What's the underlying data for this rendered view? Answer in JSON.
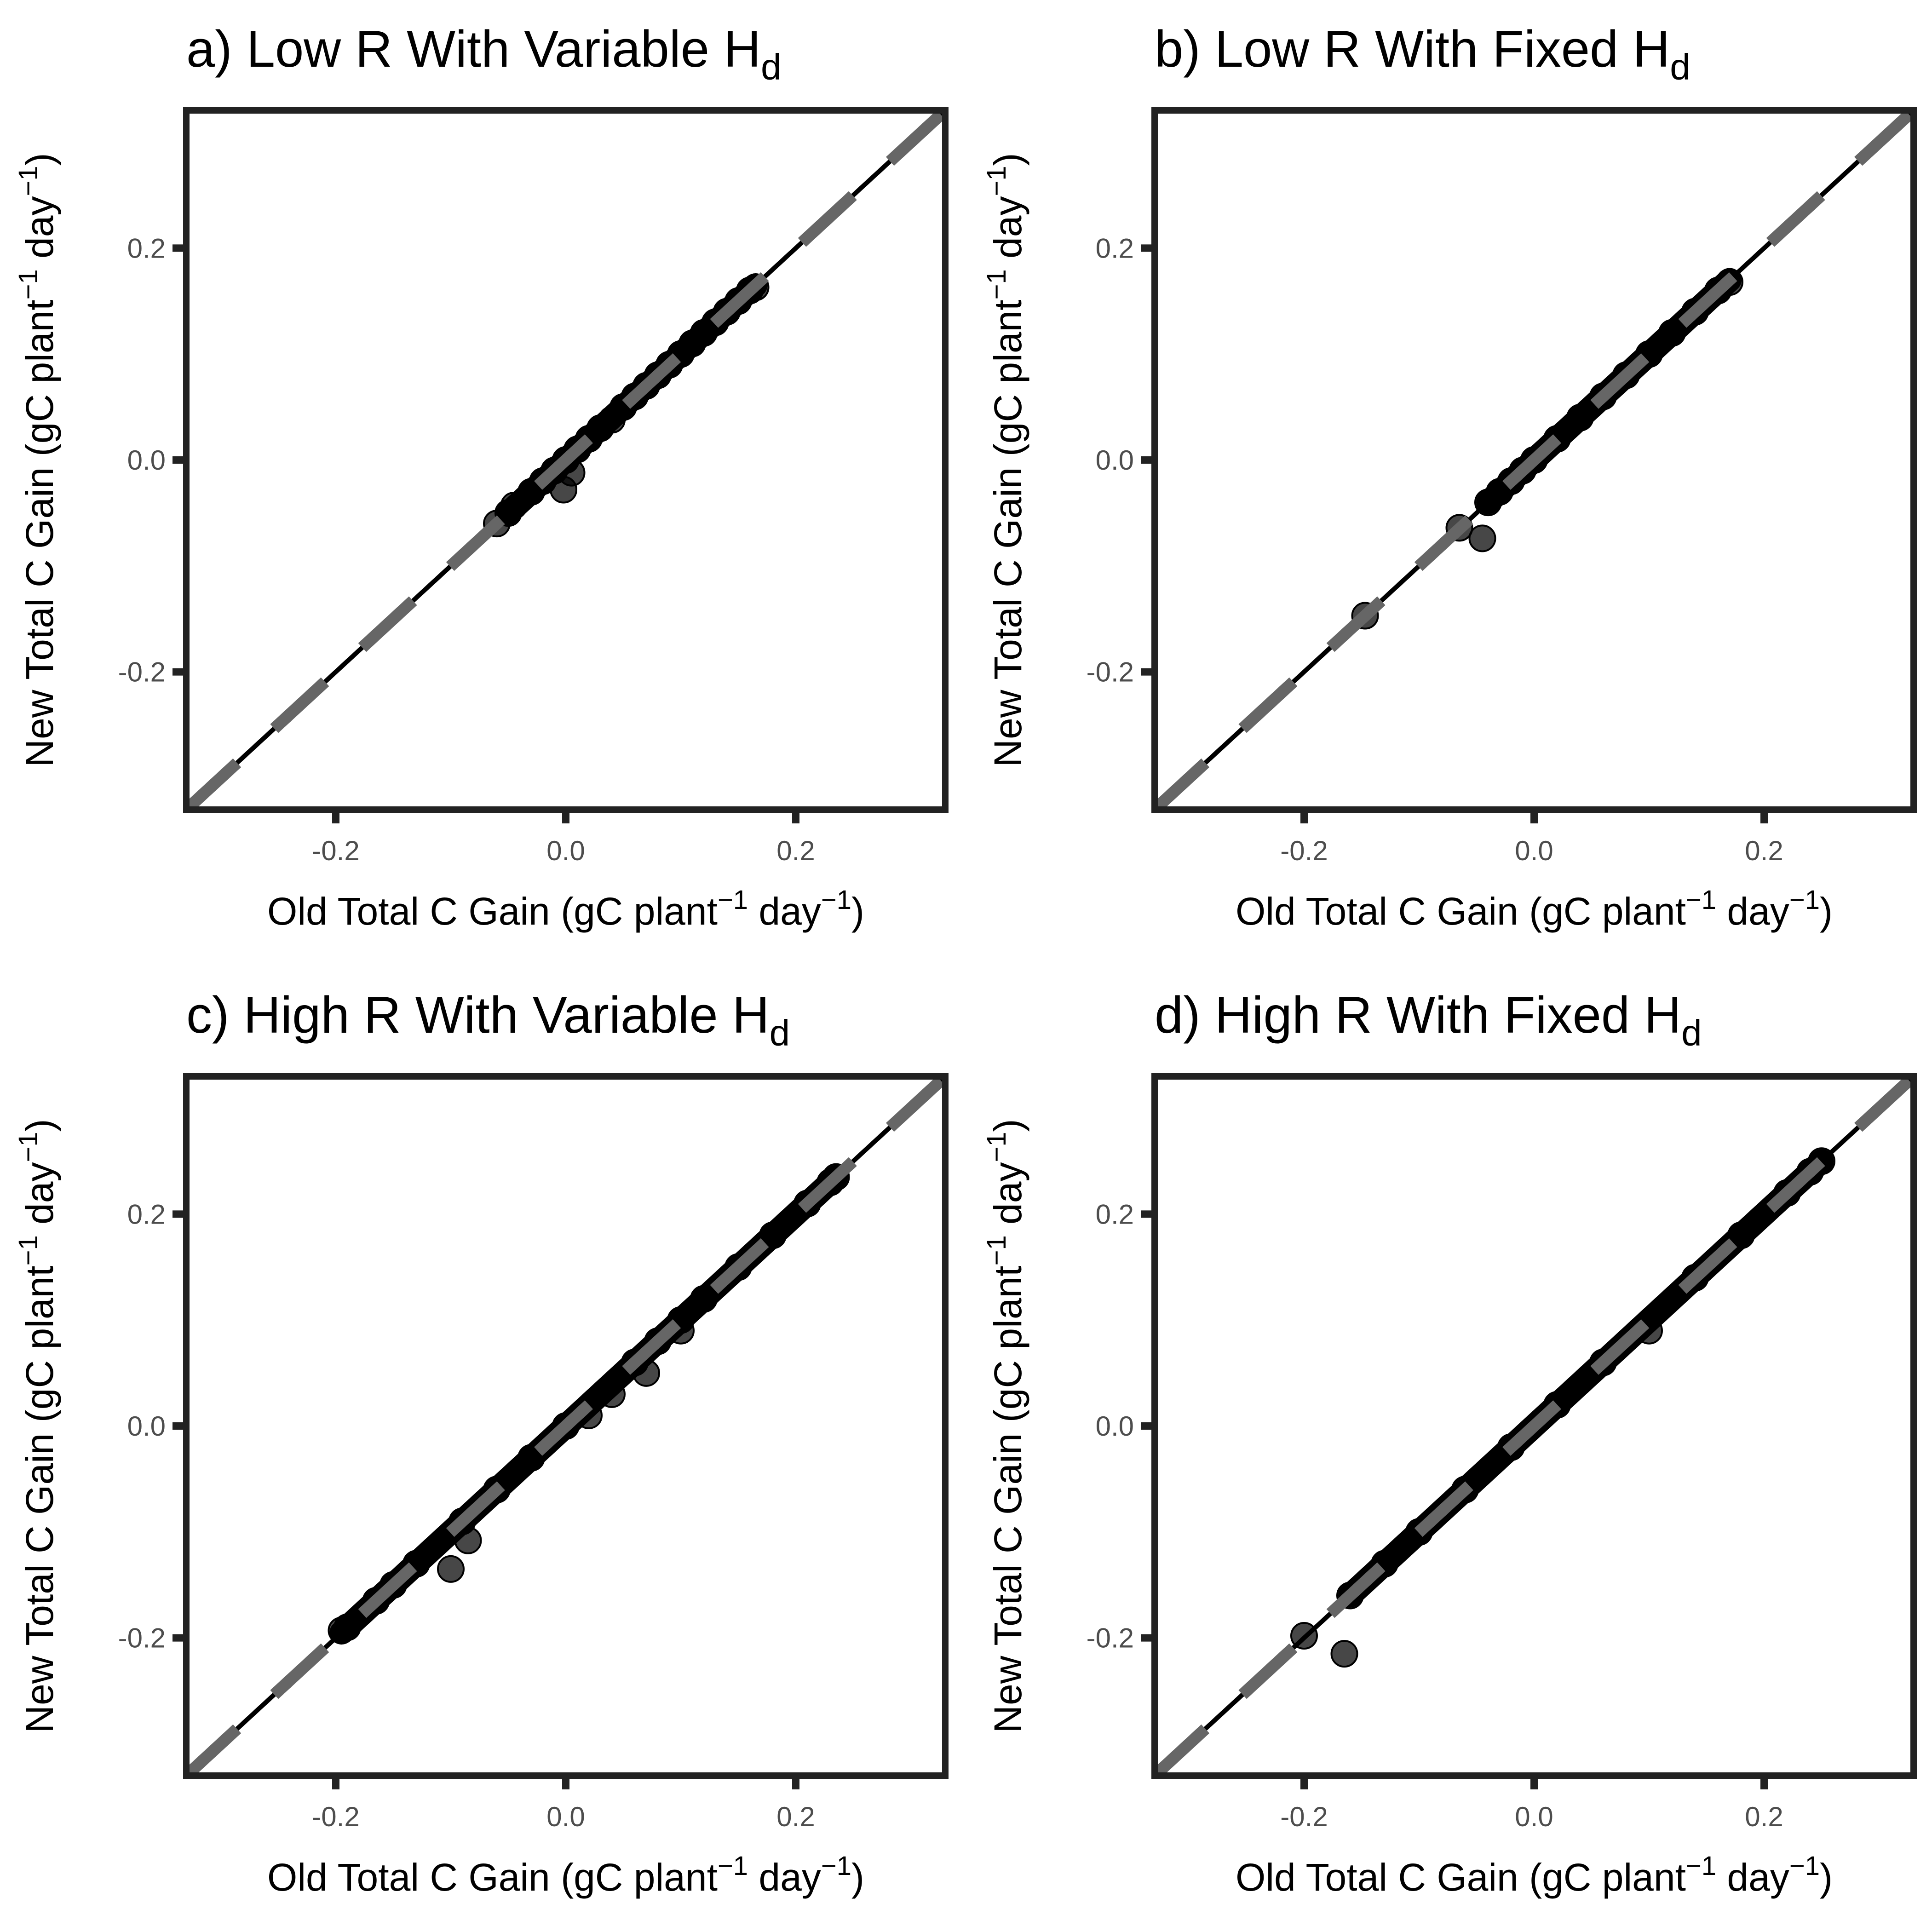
{
  "figure": {
    "background": "#ffffff",
    "frame_color": "#222222",
    "point_color": "#000000",
    "identity_line_color": "#000000",
    "dashed_line_color": "#666666"
  },
  "chart_data": [
    {
      "type": "scatter",
      "title": "a) Low R With Variable H",
      "title_subscript": "d",
      "xlabel": "Old Total C Gain (gC plant",
      "ylabel": "New Total C Gain (gC plant",
      "unit_sup": "−1",
      "unit_mid": " day",
      "unit_end": ")",
      "xlim": [
        -0.33,
        0.33
      ],
      "ylim": [
        -0.33,
        0.33
      ],
      "xticks": [
        -0.2,
        0.0,
        0.2
      ],
      "yticks": [
        -0.2,
        0.0,
        0.2
      ],
      "xtick_labels": [
        "-0.2",
        "0.0",
        "0.2"
      ],
      "ytick_labels": [
        "-0.2",
        "0.0",
        "0.2"
      ],
      "reference_lines": [
        "identity solid",
        "fit dashed"
      ],
      "dense_range": [
        -0.05,
        0.165
      ],
      "points": [
        [
          -0.06,
          -0.06
        ],
        [
          -0.05,
          -0.05
        ],
        [
          -0.045,
          -0.043
        ],
        [
          -0.03,
          -0.03
        ],
        [
          -0.02,
          -0.02
        ],
        [
          -0.01,
          -0.01
        ],
        [
          -0.002,
          -0.028
        ],
        [
          0.005,
          -0.012
        ],
        [
          0.0,
          0.0
        ],
        [
          0.01,
          0.01
        ],
        [
          0.02,
          0.02
        ],
        [
          0.03,
          0.03
        ],
        [
          0.04,
          0.038
        ],
        [
          0.05,
          0.05
        ],
        [
          0.06,
          0.06
        ],
        [
          0.07,
          0.07
        ],
        [
          0.08,
          0.08
        ],
        [
          0.09,
          0.09
        ],
        [
          0.1,
          0.1
        ],
        [
          0.11,
          0.11
        ],
        [
          0.12,
          0.12
        ],
        [
          0.13,
          0.13
        ],
        [
          0.14,
          0.14
        ],
        [
          0.15,
          0.15
        ],
        [
          0.16,
          0.16
        ],
        [
          0.165,
          0.163
        ]
      ]
    },
    {
      "type": "scatter",
      "title": "b) Low R With Fixed H",
      "title_subscript": "d",
      "xlabel": "Old Total C Gain (gC plant",
      "ylabel": "New Total C Gain (gC plant",
      "unit_sup": "−1",
      "unit_mid": " day",
      "unit_end": ")",
      "xlim": [
        -0.33,
        0.33
      ],
      "ylim": [
        -0.33,
        0.33
      ],
      "xticks": [
        -0.2,
        0.0,
        0.2
      ],
      "yticks": [
        -0.2,
        0.0,
        0.2
      ],
      "xtick_labels": [
        "-0.2",
        "0.0",
        "0.2"
      ],
      "ytick_labels": [
        "-0.2",
        "0.0",
        "0.2"
      ],
      "reference_lines": [
        "identity solid",
        "fit dashed"
      ],
      "dense_range": [
        -0.04,
        0.17
      ],
      "points": [
        [
          -0.147,
          -0.147
        ],
        [
          -0.065,
          -0.064
        ],
        [
          -0.045,
          -0.074
        ],
        [
          -0.04,
          -0.04
        ],
        [
          -0.03,
          -0.03
        ],
        [
          -0.02,
          -0.02
        ],
        [
          -0.01,
          -0.01
        ],
        [
          0.0,
          0.0
        ],
        [
          0.02,
          0.02
        ],
        [
          0.04,
          0.04
        ],
        [
          0.06,
          0.06
        ],
        [
          0.08,
          0.08
        ],
        [
          0.1,
          0.1
        ],
        [
          0.12,
          0.12
        ],
        [
          0.14,
          0.14
        ],
        [
          0.16,
          0.16
        ],
        [
          0.17,
          0.168
        ]
      ]
    },
    {
      "type": "scatter",
      "title": "c) High R With Variable H",
      "title_subscript": "d",
      "xlabel": "Old Total C Gain (gC plant",
      "ylabel": "New Total C Gain (gC plant",
      "unit_sup": "−1",
      "unit_mid": " day",
      "unit_end": ")",
      "xlim": [
        -0.33,
        0.33
      ],
      "ylim": [
        -0.33,
        0.33
      ],
      "xticks": [
        -0.2,
        0.0,
        0.2
      ],
      "yticks": [
        -0.2,
        0.0,
        0.2
      ],
      "xtick_labels": [
        "-0.2",
        "0.0",
        "0.2"
      ],
      "ytick_labels": [
        "-0.2",
        "0.0",
        "0.2"
      ],
      "reference_lines": [
        "identity solid",
        "fit dashed"
      ],
      "dense_range": [
        -0.195,
        0.235
      ],
      "points": [
        [
          -0.195,
          -0.193
        ],
        [
          -0.19,
          -0.19
        ],
        [
          -0.165,
          -0.165
        ],
        [
          -0.15,
          -0.15
        ],
        [
          -0.13,
          -0.13
        ],
        [
          -0.1,
          -0.135
        ],
        [
          -0.085,
          -0.108
        ],
        [
          -0.09,
          -0.09
        ],
        [
          -0.06,
          -0.06
        ],
        [
          -0.03,
          -0.03
        ],
        [
          0.0,
          0.0
        ],
        [
          0.02,
          0.01
        ],
        [
          0.04,
          0.03
        ],
        [
          0.06,
          0.06
        ],
        [
          0.07,
          0.05
        ],
        [
          0.08,
          0.08
        ],
        [
          0.1,
          0.1
        ],
        [
          0.1,
          0.09
        ],
        [
          0.12,
          0.12
        ],
        [
          0.15,
          0.15
        ],
        [
          0.18,
          0.18
        ],
        [
          0.21,
          0.21
        ],
        [
          0.23,
          0.23
        ],
        [
          0.235,
          0.235
        ]
      ]
    },
    {
      "type": "scatter",
      "title": "d) High R With Fixed H",
      "title_subscript": "d",
      "xlabel": "Old Total C Gain (gC plant",
      "ylabel": "New Total C Gain (gC plant",
      "unit_sup": "−1",
      "unit_mid": " day",
      "unit_end": ")",
      "xlim": [
        -0.33,
        0.33
      ],
      "ylim": [
        -0.33,
        0.33
      ],
      "xticks": [
        -0.2,
        0.0,
        0.2
      ],
      "yticks": [
        -0.2,
        0.0,
        0.2
      ],
      "xtick_labels": [
        "-0.2",
        "0.0",
        "0.2"
      ],
      "ytick_labels": [
        "-0.2",
        "0.0",
        "0.2"
      ],
      "reference_lines": [
        "identity solid",
        "fit dashed"
      ],
      "dense_range": [
        -0.16,
        0.25
      ],
      "points": [
        [
          -0.2,
          -0.198
        ],
        [
          -0.165,
          -0.215
        ],
        [
          -0.16,
          -0.16
        ],
        [
          -0.13,
          -0.13
        ],
        [
          -0.1,
          -0.1
        ],
        [
          -0.06,
          -0.06
        ],
        [
          -0.02,
          -0.02
        ],
        [
          0.02,
          0.02
        ],
        [
          0.06,
          0.06
        ],
        [
          0.1,
          0.09
        ],
        [
          0.14,
          0.14
        ],
        [
          0.18,
          0.18
        ],
        [
          0.22,
          0.22
        ],
        [
          0.24,
          0.24
        ],
        [
          0.25,
          0.25
        ]
      ]
    }
  ]
}
